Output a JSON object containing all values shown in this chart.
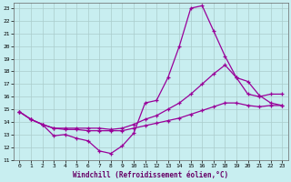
{
  "xlabel": "Windchill (Refroidissement éolien,°C)",
  "bg_color": "#c8eef0",
  "grid_color": "#aacccc",
  "line_color": "#990099",
  "xlim": [
    -0.5,
    23.5
  ],
  "ylim": [
    11,
    23.4
  ],
  "xticks": [
    0,
    1,
    2,
    3,
    4,
    5,
    6,
    7,
    8,
    9,
    10,
    11,
    12,
    13,
    14,
    15,
    16,
    17,
    18,
    19,
    20,
    21,
    22,
    23
  ],
  "yticks": [
    11,
    12,
    13,
    14,
    15,
    16,
    17,
    18,
    19,
    20,
    21,
    22,
    23
  ],
  "series": [
    {
      "x": [
        0,
        1,
        2,
        3,
        4,
        5,
        6,
        7,
        8,
        9,
        10,
        11,
        12,
        13,
        14,
        15,
        16,
        17,
        18,
        19,
        20,
        21,
        22,
        23
      ],
      "y": [
        14.8,
        14.2,
        13.8,
        12.9,
        13.0,
        12.7,
        12.5,
        11.7,
        11.5,
        12.1,
        13.1,
        15.5,
        15.7,
        17.5,
        20.0,
        23.0,
        23.2,
        21.2,
        19.2,
        17.5,
        17.2,
        16.1,
        15.5,
        15.3
      ]
    },
    {
      "x": [
        0,
        1,
        2,
        3,
        4,
        5,
        6,
        7,
        8,
        9,
        10,
        11,
        12,
        13,
        14,
        15,
        16,
        17,
        18,
        19,
        20,
        21,
        22,
        23
      ],
      "y": [
        14.8,
        14.2,
        13.8,
        13.5,
        13.5,
        13.5,
        13.5,
        13.5,
        13.4,
        13.5,
        13.8,
        14.2,
        14.5,
        15.0,
        15.5,
        16.2,
        17.0,
        17.8,
        18.5,
        17.5,
        16.2,
        16.0,
        16.2,
        16.2
      ]
    },
    {
      "x": [
        0,
        1,
        2,
        3,
        4,
        5,
        6,
        7,
        8,
        9,
        10,
        11,
        12,
        13,
        14,
        15,
        16,
        17,
        18,
        19,
        20,
        21,
        22,
        23
      ],
      "y": [
        14.8,
        14.2,
        13.8,
        13.5,
        13.4,
        13.4,
        13.3,
        13.3,
        13.3,
        13.3,
        13.5,
        13.7,
        13.9,
        14.1,
        14.3,
        14.6,
        14.9,
        15.2,
        15.5,
        15.5,
        15.3,
        15.2,
        15.3,
        15.3
      ]
    }
  ]
}
